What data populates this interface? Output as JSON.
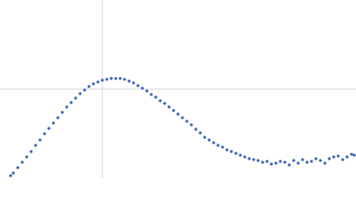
{
  "chart_data": {
    "type": "scatter",
    "color": "#3a62b5",
    "xlim": [
      0,
      400
    ],
    "ylim": [
      0,
      200
    ],
    "grid": true,
    "xgrid": [
      115
    ],
    "ygrid": [
      100
    ],
    "x": [
      12,
      15,
      20,
      25,
      30,
      35,
      40,
      45,
      50,
      55,
      60,
      65,
      70,
      75,
      80,
      85,
      90,
      95,
      100,
      105,
      110,
      115,
      120,
      125,
      130,
      135,
      140,
      145,
      150,
      155,
      160,
      165,
      170,
      175,
      180,
      185,
      190,
      195,
      200,
      205,
      210,
      215,
      220,
      225,
      230,
      235,
      240,
      245,
      250,
      255,
      260,
      265,
      270,
      275,
      280,
      285,
      290,
      295,
      300,
      305,
      310,
      315,
      320,
      325,
      330,
      335,
      340,
      345,
      350,
      355,
      360,
      365,
      370,
      375,
      380,
      385,
      390,
      395,
      398
    ],
    "values": [
      3,
      6,
      12,
      18,
      24,
      30,
      37,
      43,
      50,
      56,
      62,
      68,
      74,
      80,
      85,
      90,
      95,
      99,
      103,
      106,
      108,
      110,
      111,
      112,
      112,
      112,
      111,
      109,
      107,
      104,
      101,
      98,
      94,
      91,
      87,
      84,
      80,
      76,
      72,
      68,
      64,
      60,
      55,
      51,
      46,
      43,
      40,
      37,
      35,
      32,
      30,
      28,
      26,
      24,
      22,
      21,
      20,
      18,
      19,
      16,
      17,
      19,
      18,
      15,
      20,
      17,
      21,
      18,
      19,
      22,
      20,
      17,
      22,
      24,
      25,
      21,
      24,
      27,
      26
    ]
  }
}
